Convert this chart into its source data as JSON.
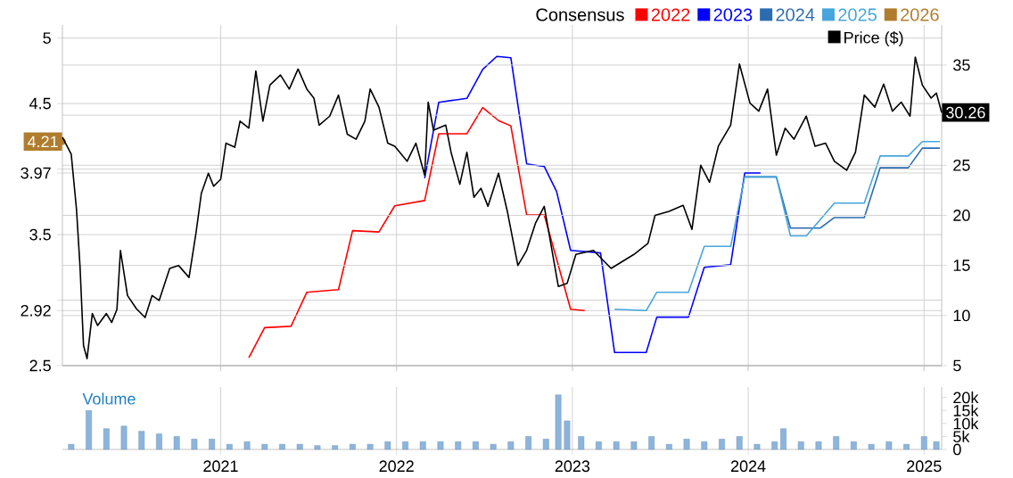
{
  "chart_data": [
    {
      "type": "line",
      "legend_title": "Consensus",
      "legend": "top right",
      "grid": true,
      "tick_labels": "y",
      "xlim": [
        2020.1,
        2025.1
      ],
      "xticks": [
        {
          "value": 2021,
          "label": null
        },
        {
          "value": 2022,
          "label": null
        },
        {
          "value": 2023,
          "label": null
        },
        {
          "value": 2024,
          "label": null
        },
        {
          "value": 2025,
          "label": null
        }
      ],
      "ylim": [
        2.5,
        5.1
      ],
      "yticks": [
        2.5,
        2.92,
        {
          "value": 3,
          "label": null
        },
        3.5,
        3.97,
        {
          "value": 4,
          "label": null
        },
        4.5,
        5
      ],
      "y2lim": [
        5,
        39
      ],
      "y2ticks": [
        5,
        10,
        15,
        20,
        25,
        {
          "value": 30,
          "label": null
        },
        35
      ],
      "series": [
        {
          "name": "Price ($)",
          "color": "#000000",
          "axis": "y2",
          "x": [
            2020.1,
            2020.15,
            2020.18,
            2020.2,
            2020.22,
            2020.24,
            2020.27,
            2020.3,
            2020.35,
            2020.38,
            2020.41,
            2020.43,
            2020.47,
            2020.52,
            2020.57,
            2020.61,
            2020.65,
            2020.71,
            2020.76,
            2020.82,
            2020.86,
            2020.89,
            2020.93,
            2020.96,
            2021.0,
            2021.03,
            2021.08,
            2021.11,
            2021.16,
            2021.2,
            2021.24,
            2021.28,
            2021.34,
            2021.39,
            2021.44,
            2021.49,
            2021.53,
            2021.56,
            2021.62,
            2021.67,
            2021.72,
            2021.77,
            2021.82,
            2021.85,
            2021.9,
            2021.95,
            2021.99,
            2022.06,
            2022.11,
            2022.16,
            2022.18,
            2022.21,
            2022.28,
            2022.31,
            2022.36,
            2022.4,
            2022.44,
            2022.48,
            2022.52,
            2022.58,
            2022.63,
            2022.69,
            2022.74,
            2022.79,
            2022.84,
            2022.92,
            2022.97,
            2023.02,
            2023.12,
            2023.22,
            2023.35,
            2023.43,
            2023.47,
            2023.55,
            2023.63,
            2023.68,
            2023.73,
            2023.78,
            2023.83,
            2023.9,
            2023.95,
            2024.01,
            2024.06,
            2024.11,
            2024.16,
            2024.21,
            2024.26,
            2024.33,
            2024.38,
            2024.44,
            2024.49,
            2024.56,
            2024.61,
            2024.66,
            2024.72,
            2024.77,
            2024.82,
            2024.87,
            2024.92,
            2024.95,
            2024.99,
            2025.04,
            2025.07,
            2025.1
          ],
          "values": [
            27.8,
            26.1,
            20.6,
            14.9,
            7,
            5.7,
            10.2,
            9.0,
            10.2,
            9.3,
            10.6,
            16.5,
            12.0,
            10.7,
            9.8,
            12.0,
            11.5,
            14.7,
            15.0,
            13.8,
            18.3,
            22.2,
            24.2,
            22.9,
            23.6,
            27.2,
            26.8,
            29.4,
            28.7,
            34.4,
            29.4,
            33.0,
            34.0,
            32.6,
            34.6,
            32.6,
            31.7,
            29.0,
            29.9,
            32.0,
            28.1,
            27.6,
            29.4,
            32.6,
            30.8,
            27.2,
            26.9,
            25.4,
            27.2,
            24.0,
            31.3,
            28.5,
            29.0,
            26.3,
            23.1,
            26.3,
            21.8,
            22.7,
            20.9,
            24.2,
            20.4,
            15.0,
            16.5,
            19.2,
            20.9,
            12.9,
            13.2,
            16.1,
            16.5,
            14.7,
            16.1,
            17.2,
            20.0,
            20.4,
            21.0,
            18.6,
            25.0,
            23.3,
            26.9,
            29.0,
            35.1,
            31.2,
            30.4,
            32.6,
            26.0,
            28.7,
            27.6,
            29.9,
            26.9,
            27.2,
            25.4,
            24.5,
            26.3,
            32.0,
            30.8,
            33.1,
            30.4,
            31.3,
            29.9,
            35.8,
            33.0,
            31.7,
            32.2,
            30.26
          ],
          "value_labels": [
            null,
            null,
            null,
            null,
            null,
            null,
            null,
            null,
            null,
            null,
            null,
            null,
            null,
            null,
            null,
            null,
            null,
            null,
            null,
            null,
            null,
            null,
            null,
            null,
            null,
            null,
            null,
            null,
            null,
            null,
            null,
            null,
            null,
            null,
            null,
            null,
            null,
            null,
            null,
            null,
            null,
            null,
            null,
            null,
            null,
            null,
            null,
            null,
            null,
            null,
            null,
            null,
            null,
            null,
            null,
            null,
            null,
            null,
            null,
            null,
            null,
            null,
            null,
            null,
            null,
            null,
            null,
            null,
            null,
            null,
            null,
            null,
            null,
            null,
            null,
            null,
            null,
            null,
            null,
            null,
            null,
            null,
            null,
            null,
            null,
            null,
            null,
            null,
            null,
            null,
            null,
            null,
            null,
            null,
            null,
            null,
            null,
            null,
            null,
            null,
            null,
            null,
            null,
            "30.26"
          ]
        },
        {
          "name": "2022",
          "color": "#ff0000",
          "x": [
            2021.16,
            2021.25,
            2021.4,
            2021.49,
            2021.67,
            2021.75,
            2021.9,
            2021.99,
            2022.16,
            2022.24,
            2022.4,
            2022.49,
            2022.58,
            2022.65,
            2022.74,
            2022.84,
            2022.99,
            2023.07
          ],
          "values": [
            2.56,
            2.79,
            2.8,
            3.06,
            3.08,
            3.53,
            3.52,
            3.72,
            3.76,
            4.27,
            4.27,
            4.47,
            4.37,
            4.33,
            3.65,
            3.65,
            2.93,
            2.92
          ]
        },
        {
          "name": "2023",
          "color": "#0000ff",
          "x": [
            2022.16,
            2022.24,
            2022.4,
            2022.49,
            2022.57,
            2022.65,
            2022.74,
            2022.84,
            2022.91,
            2022.99,
            2023.16,
            2023.24,
            2023.42,
            2023.48,
            2023.66,
            2023.75,
            2023.9,
            2023.98,
            2024.07
          ],
          "values": [
            3.93,
            4.51,
            4.54,
            4.76,
            4.86,
            4.85,
            4.04,
            4.02,
            3.83,
            3.38,
            3.36,
            2.6,
            2.6,
            2.87,
            2.87,
            3.25,
            3.27,
            3.97,
            3.97
          ]
        },
        {
          "name": "2024",
          "color": "#2b6cb0",
          "x": [
            2023.98,
            2024.16,
            2024.24,
            2024.41,
            2024.49,
            2024.66,
            2024.75,
            2024.91,
            2024.99,
            2025.09
          ],
          "values": [
            3.94,
            3.94,
            3.55,
            3.55,
            3.63,
            3.63,
            4.01,
            4.01,
            4.16,
            4.16
          ]
        },
        {
          "name": "2025",
          "color": "#46a6dc",
          "x": [
            2023.24,
            2023.42,
            2023.48,
            2023.66,
            2023.75,
            2023.9,
            2023.98,
            2024.16,
            2024.24,
            2024.33,
            2024.49,
            2024.66,
            2024.75,
            2024.91,
            2024.99,
            2025.09
          ],
          "values": [
            2.93,
            2.92,
            3.06,
            3.06,
            3.41,
            3.41,
            3.94,
            3.94,
            3.49,
            3.49,
            3.74,
            3.74,
            4.1,
            4.1,
            4.21,
            4.21
          ]
        },
        {
          "name": "2026",
          "color": "#b07d2e",
          "marker": "circle",
          "x": [
            2020.1
          ],
          "values": [
            4.21
          ],
          "value_labels": [
            "4.21"
          ]
        }
      ]
    },
    {
      "type": "bar",
      "title": "Volume",
      "grid": "x",
      "xlim": [
        2020.1,
        2025.1
      ],
      "xticks": [
        2021,
        2022,
        2023,
        2024,
        2025
      ],
      "y2lim": [
        0,
        24000
      ],
      "y2ticks": [
        0,
        {
          "value": 5000,
          "label": "5k"
        },
        {
          "value": 10000,
          "label": "10k"
        },
        {
          "value": 15000,
          "label": "15k"
        },
        {
          "value": 20000,
          "label": "20k"
        }
      ],
      "x": [
        2020.15,
        2020.25,
        2020.35,
        2020.45,
        2020.55,
        2020.65,
        2020.75,
        2020.85,
        2020.95,
        2021.05,
        2021.15,
        2021.25,
        2021.35,
        2021.45,
        2021.55,
        2021.65,
        2021.75,
        2021.85,
        2021.95,
        2022.05,
        2022.15,
        2022.25,
        2022.35,
        2022.45,
        2022.55,
        2022.65,
        2022.75,
        2022.85,
        2022.92,
        2022.97,
        2023.05,
        2023.15,
        2023.25,
        2023.35,
        2023.45,
        2023.55,
        2023.65,
        2023.75,
        2023.85,
        2023.95,
        2024.05,
        2024.15,
        2024.2,
        2024.3,
        2024.4,
        2024.5,
        2024.6,
        2024.7,
        2024.8,
        2024.9,
        2025.0,
        2025.07
      ],
      "series": [
        {
          "color": "#8cb4dc",
          "axis": "y2",
          "values": [
            2000,
            15000,
            8000,
            9000,
            7000,
            6000,
            5000,
            4000,
            4000,
            2000,
            3000,
            2000,
            2000,
            2000,
            1500,
            1500,
            2000,
            2000,
            3000,
            3000,
            3000,
            3000,
            3000,
            3000,
            2000,
            3000,
            5000,
            4000,
            21000,
            11000,
            5000,
            3000,
            3000,
            3000,
            5000,
            2000,
            4000,
            3000,
            4000,
            5000,
            2000,
            3000,
            8000,
            3000,
            3000,
            5000,
            3000,
            2000,
            3000,
            2000,
            5000,
            3000
          ]
        }
      ]
    }
  ]
}
